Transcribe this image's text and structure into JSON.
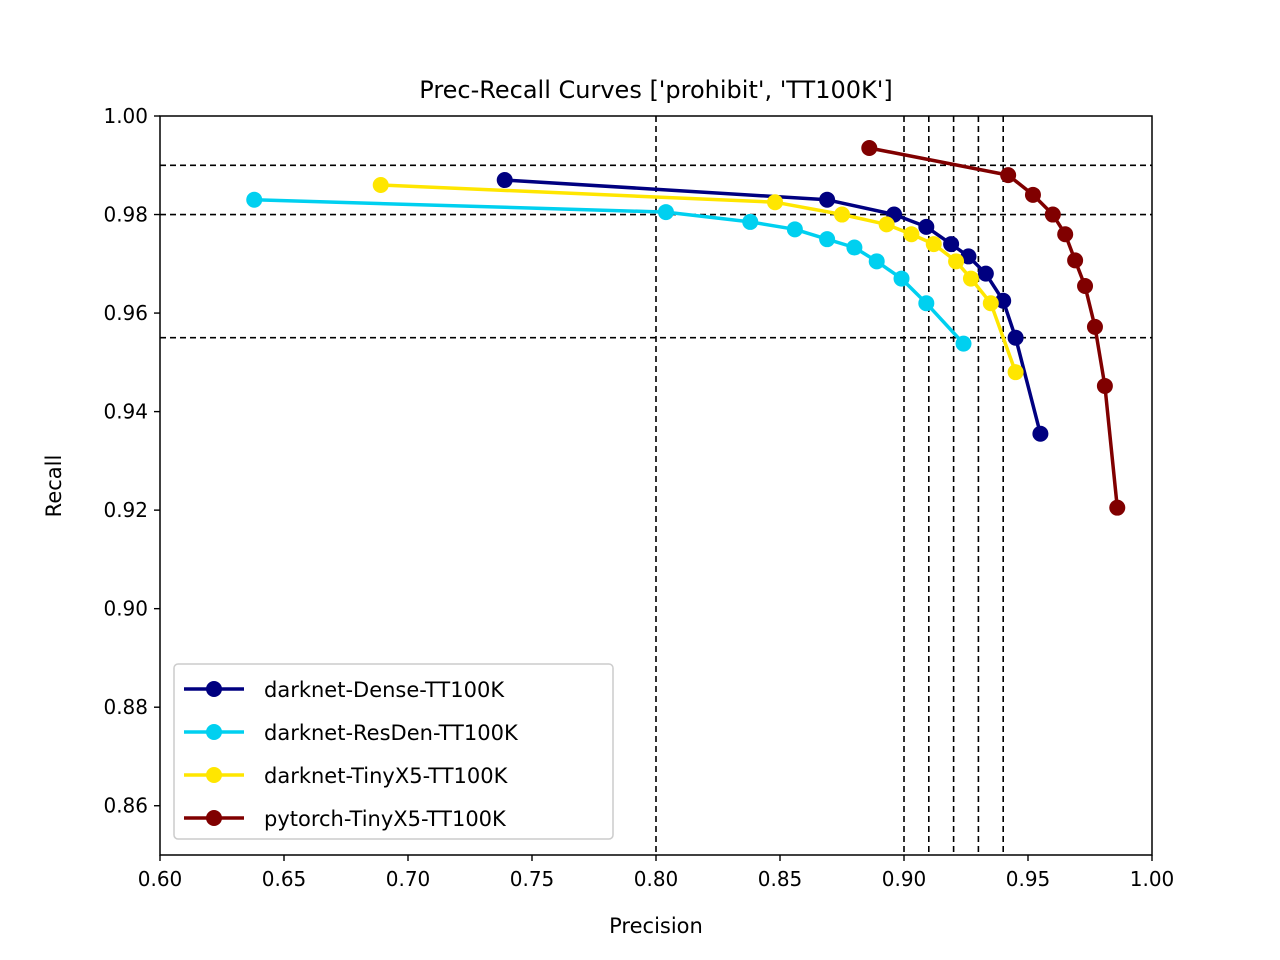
{
  "chart_data": {
    "type": "line",
    "title": "Prec-Recall Curves ['prohibit', 'TT100K']",
    "xlabel": "Precision",
    "ylabel": "Recall",
    "xlim": [
      0.6,
      1.0
    ],
    "ylim": [
      0.85,
      1.0
    ],
    "xticks": [
      "0.60",
      "0.65",
      "0.70",
      "0.75",
      "0.80",
      "0.85",
      "0.90",
      "0.95",
      "1.00"
    ],
    "yticks": [
      "0.86",
      "0.88",
      "0.90",
      "0.92",
      "0.94",
      "0.96",
      "0.98",
      "1.00"
    ],
    "grid": false,
    "legend_position": "lower-left",
    "reference_lines": {
      "vertical_x": [
        0.8,
        0.9,
        0.91,
        0.92,
        0.93,
        0.94
      ],
      "horizontal_y": [
        0.955,
        0.98,
        0.99
      ],
      "style": "dashed",
      "color": "#000000"
    },
    "series": [
      {
        "name": "darknet-Dense-TT100K",
        "color": "#000080",
        "x": [
          0.739,
          0.869,
          0.896,
          0.909,
          0.919,
          0.926,
          0.933,
          0.94,
          0.945,
          0.955
        ],
        "y": [
          0.987,
          0.983,
          0.98,
          0.9775,
          0.974,
          0.9715,
          0.968,
          0.9625,
          0.955,
          0.9355
        ]
      },
      {
        "name": "darknet-ResDen-TT100K",
        "color": "#00d0f0",
        "x": [
          0.638,
          0.804,
          0.838,
          0.856,
          0.869,
          0.88,
          0.889,
          0.899,
          0.909,
          0.924
        ],
        "y": [
          0.983,
          0.9805,
          0.9785,
          0.977,
          0.975,
          0.9733,
          0.9705,
          0.967,
          0.962,
          0.9538
        ]
      },
      {
        "name": "darknet-TinyX5-TT100K",
        "color": "#ffe600",
        "x": [
          0.689,
          0.848,
          0.875,
          0.893,
          0.903,
          0.912,
          0.921,
          0.927,
          0.935,
          0.945
        ],
        "y": [
          0.986,
          0.9825,
          0.98,
          0.978,
          0.976,
          0.974,
          0.9705,
          0.967,
          0.962,
          0.948
        ]
      },
      {
        "name": "pytorch-TinyX5-TT100K",
        "color": "#800000",
        "x": [
          0.886,
          0.942,
          0.952,
          0.96,
          0.965,
          0.969,
          0.973,
          0.977,
          0.981,
          0.986
        ],
        "y": [
          0.9935,
          0.988,
          0.984,
          0.98,
          0.976,
          0.9707,
          0.9655,
          0.9572,
          0.9452,
          0.9205
        ]
      }
    ]
  }
}
